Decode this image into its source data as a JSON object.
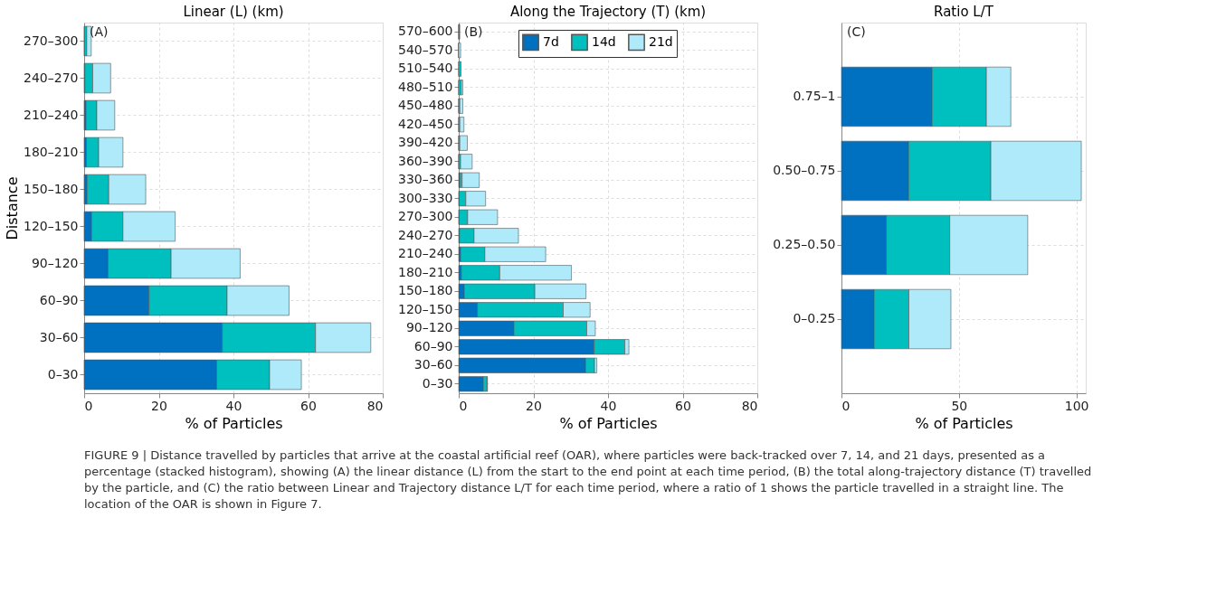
{
  "chart_data": [
    {
      "type": "bar",
      "orientation": "horizontal",
      "stacked": true,
      "title": "Linear (L) (km)",
      "xlabel": "% of Particles",
      "ylabel": "Distance",
      "categories": [
        "270–300",
        "240–270",
        "210–240",
        "180–210",
        "150–180",
        "120–150",
        "90–120",
        "60–90",
        "30–60",
        "0–30"
      ],
      "series": [
        {
          "color": "#0070c0",
          "values": [
            0.1,
            0.2,
            0.5,
            0.6,
            0.8,
            2.0,
            6.4,
            17.4,
            37.0,
            35.5
          ]
        },
        {
          "color": "#00bfbf",
          "values": [
            0.6,
            2.1,
            2.9,
            3.3,
            5.8,
            8.4,
            16.9,
            20.9,
            25.0,
            14.2
          ]
        },
        {
          "color": "#aeeafa",
          "values": [
            1.2,
            4.8,
            4.8,
            6.5,
            9.9,
            14.0,
            18.5,
            16.6,
            14.8,
            8.5
          ]
        }
      ],
      "xlim": [
        0,
        80
      ],
      "xticks": [
        0,
        20,
        40,
        60,
        80
      ],
      "grid": true,
      "legend": false,
      "annotations": [
        "(A)"
      ]
    },
    {
      "type": "bar",
      "orientation": "horizontal",
      "stacked": true,
      "title": "Along the Trajectory (T) (km)",
      "xlabel": "% of Particles",
      "categories": [
        "570–600",
        "540–570",
        "510–540",
        "480–510",
        "450–480",
        "420–450",
        "390–420",
        "360–390",
        "330–360",
        "300–330",
        "270–300",
        "240–270",
        "210–240",
        "180–210",
        "150–180",
        "120–150",
        "90–120",
        "60–90",
        "30–60",
        "0–30"
      ],
      "series": [
        {
          "name": "7d",
          "color": "#0070c0",
          "values": [
            0,
            0,
            0,
            0,
            0,
            0,
            0,
            0,
            0.3,
            0.1,
            0.1,
            0.2,
            0.5,
            0.7,
            1.5,
            5.0,
            14.8,
            36.3,
            34.0,
            6.6
          ]
        },
        {
          "name": "14d",
          "color": "#00bfbf",
          "values": [
            0.2,
            0,
            0.6,
            0.7,
            0.3,
            0.3,
            0.3,
            0.5,
            0.6,
            1.8,
            2.3,
            3.9,
            6.5,
            10.3,
            18.9,
            23.0,
            19.5,
            8.2,
            2.4,
            1.0
          ]
        },
        {
          "name": "21d",
          "color": "#aeeafa",
          "values": [
            0,
            0.5,
            null,
            0.4,
            0.8,
            1.1,
            2.0,
            3.1,
            4.6,
            5.3,
            8.0,
            11.9,
            16.3,
            19.2,
            13.7,
            7.2,
            2.3,
            1.1,
            0.6,
            0.1
          ]
        }
      ],
      "xlim": [
        0,
        80
      ],
      "xticks": [
        0,
        20,
        40,
        60,
        80
      ],
      "grid": true,
      "legend": "top",
      "annotations": [
        "(B)"
      ]
    },
    {
      "type": "bar",
      "orientation": "horizontal",
      "stacked": true,
      "title": "Ratio L/T",
      "xlabel": "% of Particles",
      "categories": [
        "0.75–1",
        "0.50–0.75",
        "0.25–0.50",
        "0–0.25"
      ],
      "series": [
        {
          "color": "#0070c0",
          "values": [
            38.6,
            28.6,
            19.1,
            13.9
          ]
        },
        {
          "color": "#00bfbf",
          "values": [
            23.1,
            35.0,
            27.0,
            14.8
          ]
        },
        {
          "color": "#aeeafa",
          "values": [
            10.4,
            38.5,
            33.2,
            17.9
          ]
        }
      ],
      "xlim": [
        0,
        104
      ],
      "xticks": [
        0,
        50,
        100
      ],
      "grid": true,
      "legend": false,
      "annotations": [
        "(C)",
        "FIGURE 9 | Distance travelled by particles that arrive at the coastal artificial reef (OAR), where particles were back-tracked over 7, 14, and 21 days, presented as a percentage (stacked histogram), showing (A) the linear distance (L) from the start to the end point at each time period, (B) the total along-trajectory distance (T) travelled by the particle, and (C) the ratio between Linear and Trajectory distance L/T for each time period, where a ratio of 1 shows the particle travelled in a straight line. The location of the OAR is shown in Figure 7."
      ]
    }
  ]
}
